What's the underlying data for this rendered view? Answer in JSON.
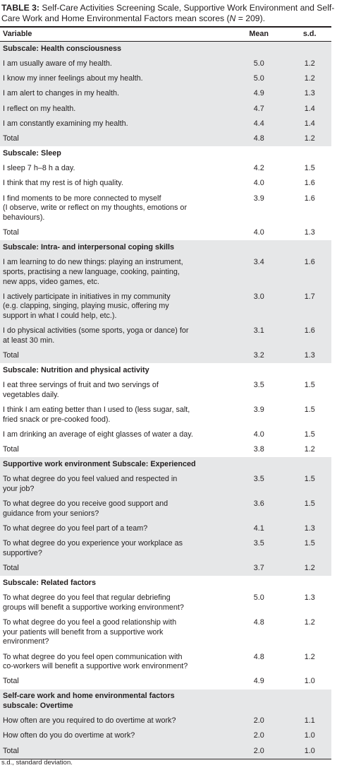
{
  "title": {
    "label": "TABLE 3:",
    "text": "Self-Care Activities Screening Scale, Supportive Work Environment and Self-Care Work and Home Environmental Factors mean scores (",
    "n": "N",
    "end": " = 209)."
  },
  "table": {
    "header": [
      "Variable",
      "Mean",
      "s.d."
    ],
    "sections": [
      {
        "heading": [
          "Subscale: Health consciousness"
        ],
        "rows": [
          {
            "variable": [
              "I am usually aware of my health."
            ],
            "mean": "5.0",
            "sd": "1.2"
          },
          {
            "variable": [
              "I know my inner feelings about my health."
            ],
            "mean": "5.0",
            "sd": "1.2"
          },
          {
            "variable": [
              "I am alert to changes in my health."
            ],
            "mean": "4.9",
            "sd": "1.3"
          },
          {
            "variable": [
              "I reflect on my health."
            ],
            "mean": "4.7",
            "sd": "1.4"
          },
          {
            "variable": [
              "I am constantly examining my health."
            ],
            "mean": "4.4",
            "sd": "1.4"
          }
        ],
        "total": {
          "label": "Total",
          "mean": "4.8",
          "sd": "1.2"
        }
      },
      {
        "heading": [
          "Subscale: Sleep"
        ],
        "rows": [
          {
            "variable": [
              "I sleep 7 h–8 h a day."
            ],
            "mean": "4.2",
            "sd": "1.5"
          },
          {
            "variable": [
              "I think that my rest is of high quality."
            ],
            "mean": "4.0",
            "sd": "1.6"
          },
          {
            "variable": [
              "I find moments to be more connected to myself",
              "(I observe, write or reflect on my thoughts, emotions or",
              "behaviours)."
            ],
            "mean": "3.9",
            "sd": "1.6"
          }
        ],
        "total": {
          "label": "Total",
          "mean": "4.0",
          "sd": "1.3"
        }
      },
      {
        "heading": [
          "Subscale: Intra- and interpersonal coping skills"
        ],
        "rows": [
          {
            "variable": [
              "I am learning to do new things: playing an instrument,",
              "sports, practising a new language, cooking, painting,",
              "new apps, video games, etc."
            ],
            "mean": "3.4",
            "sd": "1.6"
          },
          {
            "variable": [
              "I actively participate in initiatives in my community",
              "(e.g. clapping, singing, playing music, offering my",
              "support in what I could help, etc.)."
            ],
            "mean": "3.0",
            "sd": "1.7"
          },
          {
            "variable": [
              "I do physical activities (some sports, yoga or dance) for",
              "at least 30 min."
            ],
            "mean": "3.1",
            "sd": "1.6"
          }
        ],
        "total": {
          "label": "Total",
          "mean": "3.2",
          "sd": "1.3"
        }
      },
      {
        "heading": [
          "Subscale: Nutrition and physical activity"
        ],
        "rows": [
          {
            "variable": [
              "I eat three servings of fruit and two servings of",
              "vegetables daily."
            ],
            "mean": "3.5",
            "sd": "1.5"
          },
          {
            "variable": [
              "I think I am eating better than I used to (less sugar, salt,",
              "fried snack or pre-cooked food)."
            ],
            "mean": "3.9",
            "sd": "1.5"
          },
          {
            "variable": [
              "I am drinking an average of eight glasses of water a day."
            ],
            "mean": "4.0",
            "sd": "1.5"
          }
        ],
        "total": {
          "label": "Total",
          "mean": "3.8",
          "sd": "1.2"
        }
      },
      {
        "heading": [
          "Supportive work environment Subscale: Experienced"
        ],
        "rows": [
          {
            "variable": [
              "To what degree do you feel valued and respected in",
              "your job?"
            ],
            "mean": "3.5",
            "sd": "1.5"
          },
          {
            "variable": [
              "To what degree do you receive good support and",
              "guidance from your seniors?"
            ],
            "mean": "3.6",
            "sd": "1.5"
          },
          {
            "variable": [
              "To what degree do you feel part of a team?"
            ],
            "mean": "4.1",
            "sd": "1.3"
          },
          {
            "variable": [
              "To what degree do you experience your workplace as",
              "supportive?"
            ],
            "mean": "3.5",
            "sd": "1.5"
          }
        ],
        "total": {
          "label": "Total",
          "mean": "3.7",
          "sd": "1.2"
        }
      },
      {
        "heading": [
          "Subscale: Related factors"
        ],
        "rows": [
          {
            "variable": [
              "To what degree do you feel that regular debriefing",
              "groups will benefit a supportive working environment?"
            ],
            "mean": "5.0",
            "sd": "1.3"
          },
          {
            "variable": [
              "To what degree do you feel a good relationship with",
              "your patients will benefit from a supportive work",
              "environment?"
            ],
            "mean": "4.8",
            "sd": "1.2"
          },
          {
            "variable": [
              "To what degree do you feel open communication with",
              "co-workers will benefit a supportive work environment?"
            ],
            "mean": "4.8",
            "sd": "1.2"
          }
        ],
        "total": {
          "label": "Total",
          "mean": "4.9",
          "sd": "1.0"
        }
      },
      {
        "heading": [
          "Self-care work and home environmental factors",
          "subscale: Overtime"
        ],
        "rows": [
          {
            "variable": [
              "How often are you required to do overtime at work?"
            ],
            "mean": "2.0",
            "sd": "1.1"
          },
          {
            "variable": [
              "How often do you do overtime at work?"
            ],
            "mean": "2.0",
            "sd": "1.0"
          }
        ],
        "total": {
          "label": "Total",
          "mean": "2.0",
          "sd": "1.0"
        }
      }
    ]
  },
  "footnote": "s.d., standard deviation."
}
